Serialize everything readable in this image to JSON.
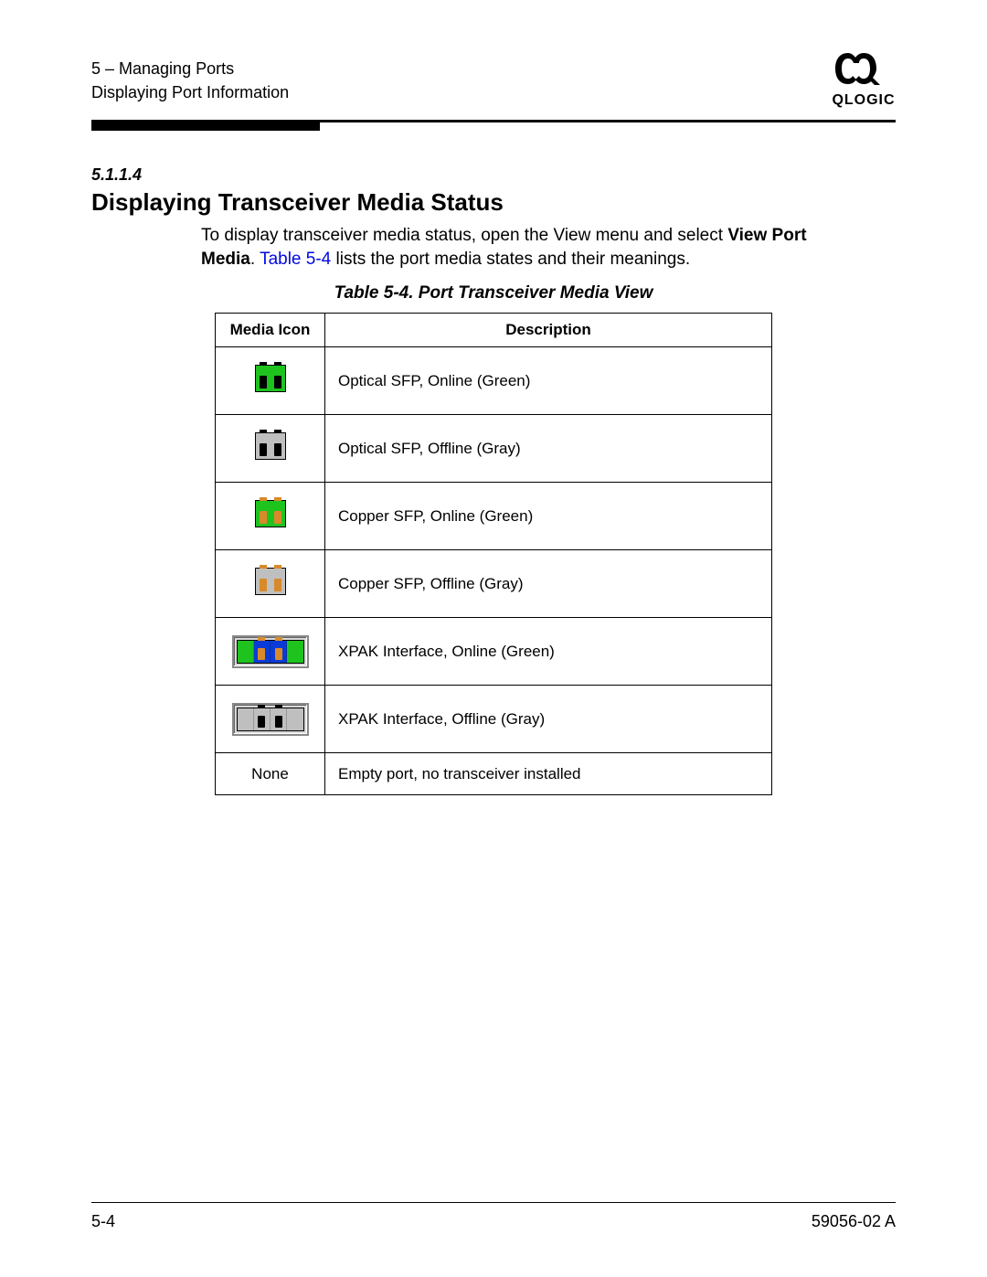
{
  "header": {
    "chapter_line": "5 – Managing Ports",
    "section_line": "Displaying Port Information",
    "brand": "QLOGIC"
  },
  "section": {
    "number": "5.1.1.4",
    "title": "Displaying Transceiver Media Status",
    "intro_1": "To display transceiver media status, open the View menu and select ",
    "intro_bold": "View Port Media",
    "intro_2": ". ",
    "xref": "Table 5-4",
    "intro_3": " lists the port media states and their meanings."
  },
  "table": {
    "caption": "Table 5-4. Port Transceiver Media View",
    "col1": "Media Icon",
    "col2": "Description",
    "rows": [
      {
        "icon_type": "sfp",
        "bg": "#1ec31e",
        "conn": "#000000",
        "desc": "Optical SFP, Online (Green)"
      },
      {
        "icon_type": "sfp",
        "bg": "#bfbfbf",
        "conn": "#000000",
        "desc": "Optical SFP, Offline (Gray)"
      },
      {
        "icon_type": "sfp",
        "bg": "#1ec31e",
        "conn": "#d88a2a",
        "desc": "Copper SFP, Online (Green)"
      },
      {
        "icon_type": "sfp",
        "bg": "#bfbfbf",
        "conn": "#d88a2a",
        "desc": "Copper SFP, Offline (Gray)"
      },
      {
        "icon_type": "xpak",
        "side_bg": "#1ec31e",
        "mid_bg": "#0a3bd6",
        "conn": "#d88a2a",
        "desc": "XPAK Interface, Online (Green)"
      },
      {
        "icon_type": "xpak",
        "side_bg": "#bfbfbf",
        "mid_bg": "#bfbfbf",
        "conn": "#000000",
        "desc": "XPAK Interface, Offline (Gray)"
      },
      {
        "icon_type": "none",
        "label": "None",
        "desc": "Empty port, no transceiver installed"
      }
    ]
  },
  "footer": {
    "page": "5-4",
    "docnum": "59056-02 A"
  },
  "colors": {
    "link": "#0008e0"
  }
}
